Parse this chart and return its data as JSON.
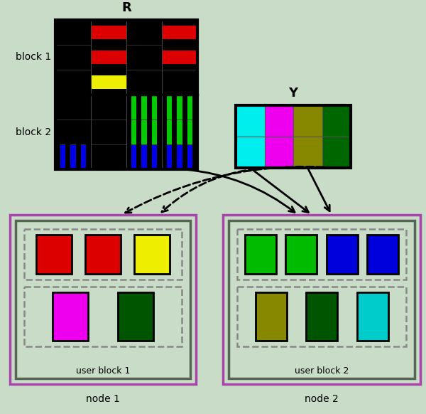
{
  "bg_color": "#c8dcc8",
  "R_label": "R",
  "Y_label": "Y",
  "block1_label": "block 1",
  "block2_label": "block 2",
  "node1_label": "node 1",
  "node2_label": "node 2",
  "user_block1_label": "user block 1",
  "user_block2_label": "user block 2",
  "R_block1_rows": [
    [
      "#000000",
      "#dd0000",
      "#000000",
      "#dd0000"
    ],
    [
      "#000000",
      "#dd0000",
      "#000000",
      "#dd0000"
    ],
    [
      "#000000",
      "#eeee00",
      "#000000",
      "#000000"
    ]
  ],
  "R_block2_rows": [
    [
      "#000000",
      "#000000",
      "#00cc00",
      "#00cc00"
    ],
    [
      "#000000",
      "#000000",
      "#00cc00",
      "#00cc00"
    ],
    [
      "#0000ee",
      "#000000",
      "#0000ee",
      "#0000ee"
    ]
  ],
  "Y_grid": [
    [
      "#00eeee",
      "#ee00ee",
      "#888800",
      "#006600"
    ],
    [
      "#00eeee",
      "#ee00ee",
      "#888800",
      "#006600"
    ]
  ],
  "node1_top": [
    "#dd0000",
    "#dd0000",
    "#eeee00"
  ],
  "node1_bot": [
    "#ee00ee",
    "#005500"
  ],
  "node2_top": [
    "#00bb00",
    "#00bb00",
    "#0000dd",
    "#0000dd"
  ],
  "node2_bot": [
    "#888800",
    "#005500",
    "#00cccc"
  ],
  "node_outer_color": "#aa44aa",
  "node_inner_color": "#556655",
  "dash_color": "#888888"
}
